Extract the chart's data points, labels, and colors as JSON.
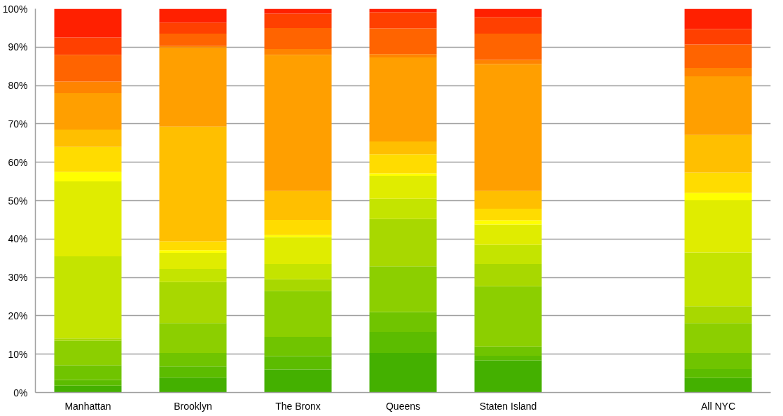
{
  "chart_data": {
    "type": "bar",
    "stacked": true,
    "categories": [
      "Manhattan",
      "Brooklyn",
      "The Bronx",
      "Queens",
      "Staten Island",
      null,
      "All NYC"
    ],
    "ylim": [
      0,
      100
    ],
    "yticks": [
      {
        "value": 0,
        "label": "0%"
      },
      {
        "value": 10,
        "label": "10%"
      },
      {
        "value": 20,
        "label": "20%"
      },
      {
        "value": 30,
        "label": "30%"
      },
      {
        "value": 40,
        "label": "40%"
      },
      {
        "value": 50,
        "label": "50%"
      },
      {
        "value": 60,
        "label": "60%"
      },
      {
        "value": 70,
        "label": "70%"
      },
      {
        "value": 80,
        "label": "80%"
      },
      {
        "value": 90,
        "label": "90%"
      },
      {
        "value": 100,
        "label": "100%"
      }
    ],
    "grid": "y",
    "series": [
      {
        "color": "#44b000",
        "values": [
          1.8,
          3.9,
          6,
          10.3,
          8.4,
          null,
          3.8
        ]
      },
      {
        "color": "#5cbc00",
        "values": [
          1.5,
          2.9,
          3.5,
          5.5,
          1.2,
          null,
          2.3
        ]
      },
      {
        "color": "#70c400",
        "values": [
          3.8,
          3.5,
          5,
          5.2,
          2.4,
          null,
          4.2
        ]
      },
      {
        "color": "#8ccf00",
        "values": [
          6.4,
          7.8,
          12,
          11.9,
          15.7,
          null,
          7.8
        ]
      },
      {
        "color": "#a8d800",
        "values": [
          0.6,
          10.7,
          3,
          12.3,
          5.8,
          null,
          4.4
        ]
      },
      {
        "color": "#c4e400",
        "values": [
          21.4,
          3.4,
          4,
          5.3,
          5,
          null,
          14
        ]
      },
      {
        "color": "#e0ec00",
        "values": [
          19.5,
          4.2,
          7,
          6,
          5.3,
          null,
          13.6
        ]
      },
      {
        "color": "#ffff00",
        "values": [
          2.5,
          0.7,
          0.5,
          0.6,
          1.1,
          null,
          1.9
        ]
      },
      {
        "color": "#ffdc00",
        "values": [
          6.5,
          2.3,
          4,
          5,
          3,
          null,
          5.3
        ]
      },
      {
        "color": "#ffbf00",
        "values": [
          4.5,
          29.9,
          7.5,
          3.3,
          4.6,
          null,
          9.8
        ]
      },
      {
        "color": "#ff9f00",
        "values": [
          9.5,
          20.6,
          35.5,
          21.9,
          33.1,
          null,
          15.3
        ]
      },
      {
        "color": "#ff8400",
        "values": [
          3,
          0.4,
          1.5,
          0.9,
          1.1,
          null,
          2.2
        ]
      },
      {
        "color": "#ff6400",
        "values": [
          7,
          3.2,
          5.5,
          6.7,
          6.8,
          null,
          6.1
        ]
      },
      {
        "color": "#ff4000",
        "values": [
          4.5,
          2.9,
          3.7,
          4.2,
          4.3,
          null,
          4
        ]
      },
      {
        "color": "#ff2000",
        "values": [
          7.5,
          3.6,
          1.3,
          0.9,
          2.2,
          null,
          5.3
        ]
      }
    ]
  }
}
